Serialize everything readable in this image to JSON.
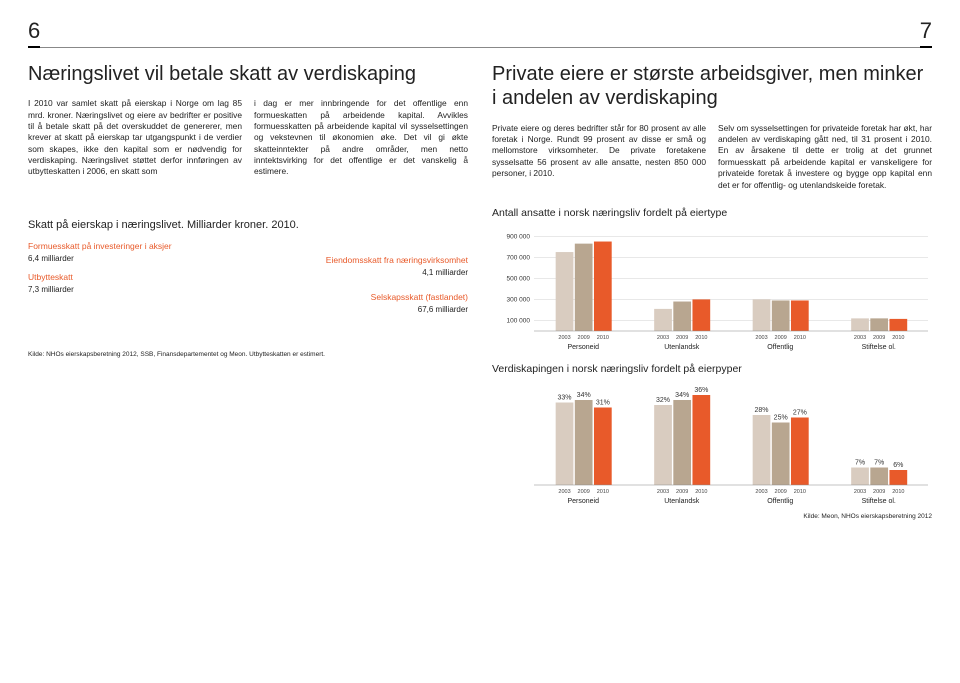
{
  "page_left": "6",
  "page_right": "7",
  "left": {
    "headline": "Næringslivet vil betale skatt av verdiskaping",
    "col1": "I 2010 var samlet skatt på eierskap i Norge om lag 85 mrd. kroner. Næringslivet og eiere av bedrifter er positive til å betale skatt på det overskuddet de genererer, men krever at skatt på eierskap tar utgangspunkt i de verdier som skapes, ikke den kapital som er nødvendig for verdiskaping. Næringslivet støttet derfor innføringen av utbytteskatten i 2006, en skatt som",
    "col2": "i dag er mer innbringende for det offentlige enn formueskatten på arbeidende kapital.\n\nAvvikles formuesskatten på arbeidende kapital vil sysselsettingen og vekstevnen til økonomien øke. Det vil gi økte skatteinntekter på andre områder, men netto inntektsvirking for det offentlige er det vanskelig å estimere."
  },
  "right": {
    "headline": "Private eiere er største arbeidsgiver, men minker i andelen av verdiskaping",
    "col1": "Private eiere og deres bedrifter står for 80 prosent av alle foretak i Norge. Rundt 99 prosent av disse er små og mellomstore virksomheter. De private foretakene sysselsatte 56 prosent av alle ansatte, nesten 850 000 personer, i 2010.",
    "col2": "Selv om sysselsettingen for privateide foretak har økt, har andelen av verdiskaping gått ned, til 31 prosent i 2010. En av årsakene til dette er trolig at det grunnet formuesskatt på arbeidende kapital er vanskeligere for privateide foretak å investere og bygge opp kapital enn det er for offentlig- og utenlandskeide foretak."
  },
  "tax": {
    "title": "Skatt på eierskap i næringslivet. Milliarder kroner. 2010.",
    "a_head": "Formuesskatt på investeringer i aksjer",
    "a_val": "6,4 milliarder",
    "b_head": "Utbytteskatt",
    "b_val": "7,3 milliarder",
    "c_head": "Eiendomsskatt fra næringsvirksomhet",
    "c_val": "4,1 milliarder",
    "d_head": "Selskapsskatt (fastlandet)",
    "d_val": "67,6 milliarder",
    "source": "Kilde: NHOs eierskapsberetning 2012, SSB, Finansdepartementet og Meon. Utbytteskatten er estimert."
  },
  "chart1": {
    "title": "Antall ansatte i norsk næringsliv fordelt på eiertype",
    "yticks": [
      900000,
      700000,
      500000,
      300000,
      100000
    ],
    "yfmt": [
      "900 000",
      "700 000",
      "500 000",
      "300 000",
      "100 000"
    ],
    "groups": [
      "Personeid",
      "Utenlandsk",
      "Offentlig",
      "Stiftelse ol."
    ],
    "years": [
      "2003",
      "2009",
      "2010"
    ],
    "colors": [
      "#d9ccc0",
      "#b8a690",
      "#e85a2a"
    ],
    "data": [
      [
        750000,
        830000,
        850000
      ],
      [
        210000,
        280000,
        300000
      ],
      [
        300000,
        290000,
        290000
      ],
      [
        120000,
        120000,
        115000
      ]
    ],
    "ymax": 950000,
    "grid_color": "#d0d0d0",
    "label_fontsize": 6.5
  },
  "chart2": {
    "title": "Verdiskapingen i norsk næringsliv fordelt på eierpyper",
    "groups": [
      "Personeid",
      "Utenlandsk",
      "Offentlig",
      "Stiftelse ol."
    ],
    "years": [
      "2003",
      "2009",
      "2010"
    ],
    "colors": [
      "#d9ccc0",
      "#b8a690",
      "#e85a2a"
    ],
    "data": [
      [
        33,
        34,
        31
      ],
      [
        32,
        34,
        36
      ],
      [
        28,
        25,
        27
      ],
      [
        7,
        7,
        6
      ]
    ],
    "labels": [
      [
        "33%",
        "34%",
        "31%"
      ],
      [
        "32%",
        "34%",
        "36%"
      ],
      [
        "28%",
        "25%",
        "27%"
      ],
      [
        "7%",
        "7%",
        "6%"
      ]
    ],
    "ymax": 40,
    "label_fontsize": 7,
    "source": "Kilde: Meon, NHOs eierskapsberetning 2012"
  }
}
